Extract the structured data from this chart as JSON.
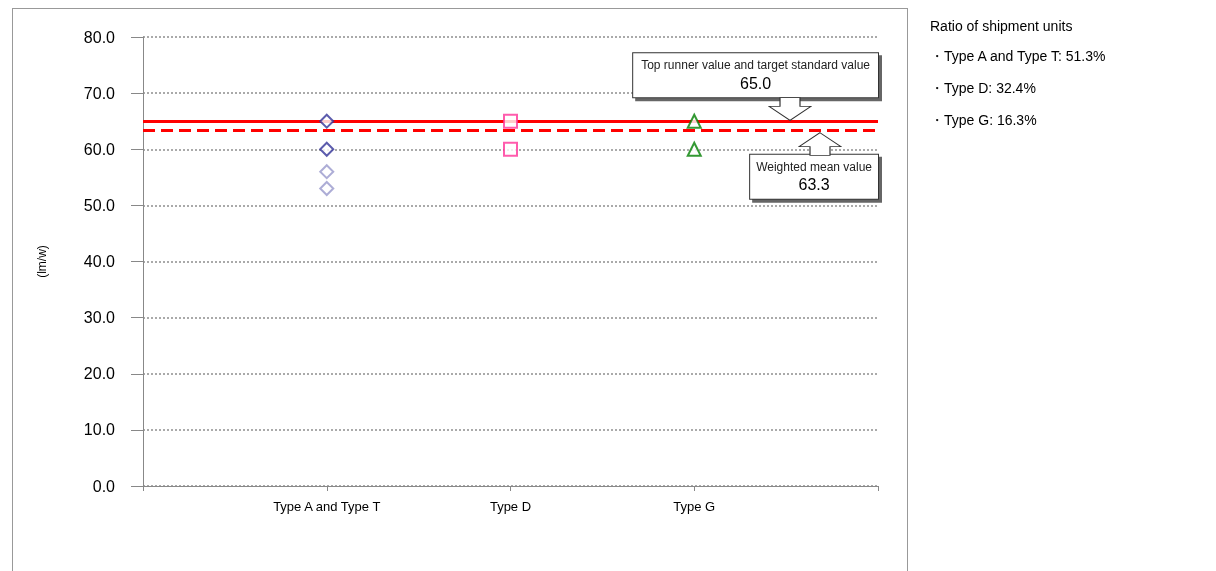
{
  "chart_data": {
    "type": "scatter",
    "ylabel": "(lm/w)",
    "categories": [
      "Type A and Type T",
      "Type D",
      "Type G"
    ],
    "series": [
      {
        "x": [
          "Type A and Type T",
          "Type A and Type T",
          "Type A and Type T",
          "Type A and Type T"
        ],
        "values": [
          65,
          60,
          56,
          53
        ],
        "colors": [
          "#333399",
          "#333399",
          "#9999cc",
          "#9999cc"
        ],
        "marker": "diamond"
      },
      {
        "x": [
          "Type D",
          "Type D"
        ],
        "values": [
          65,
          60
        ],
        "color": "#ff3399",
        "marker": "square"
      },
      {
        "x": [
          "Type G",
          "Type G"
        ],
        "values": [
          65,
          60
        ],
        "color": "#008000",
        "marker": "triangle"
      }
    ],
    "ylim": [
      0,
      80
    ],
    "yticks": [
      {
        "value": 0,
        "label": "0.0"
      },
      {
        "value": 10,
        "label": "10.0"
      },
      {
        "value": 20,
        "label": "20.0"
      },
      {
        "value": 30,
        "label": "30.0"
      },
      {
        "value": 40,
        "label": "40.0"
      },
      {
        "value": 50,
        "label": "50.0"
      },
      {
        "value": 60,
        "label": "60.0"
      },
      {
        "value": 70,
        "label": "70.0"
      },
      {
        "value": 80,
        "label": "80.0"
      }
    ],
    "grid": "y",
    "ref_lines": [
      {
        "axis": "y",
        "value": 65,
        "label": "Top runner value and target standard value\n65.0",
        "color": "#ff0000",
        "line_style": "solid"
      },
      {
        "axis": "y",
        "value": 63.3,
        "label": "Weighted mean value\n63.3",
        "color": "#ff0000",
        "line_style": "dashed"
      }
    ],
    "annotations": [
      "Ratio of shipment units",
      "・Type A and Type T: 51.3%",
      "・Type D: 32.4%",
      "・Type G: 16.3%"
    ]
  }
}
